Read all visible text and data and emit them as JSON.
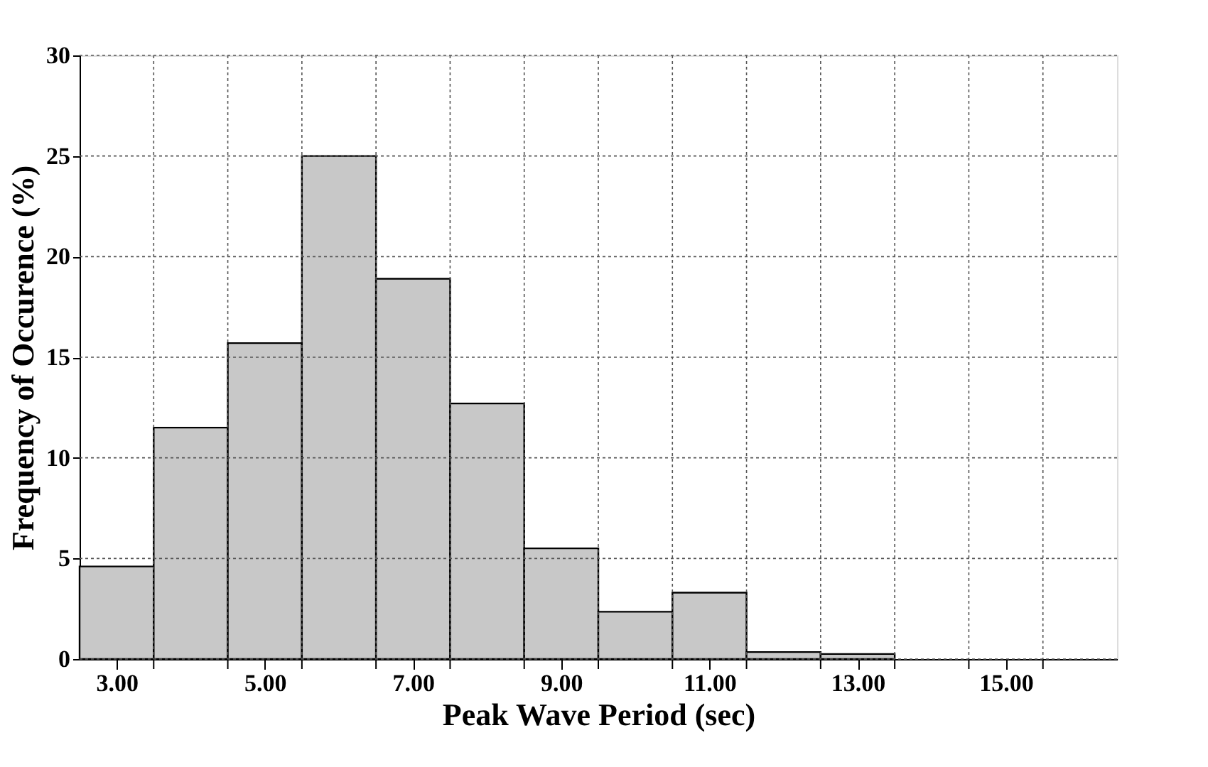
{
  "chart_data": {
    "type": "histogram",
    "xlabel": "Peak Wave Period (sec)",
    "ylabel": "Frequency of Occurence (%)",
    "bins": [
      2.5,
      3.5,
      4.5,
      5.5,
      6.5,
      7.5,
      8.5,
      9.5,
      10.5,
      11.5,
      12.5,
      13.5,
      14.5,
      15.5,
      16.5
    ],
    "values": [
      4.6,
      11.5,
      15.7,
      25.0,
      18.9,
      12.7,
      5.5,
      2.35,
      3.3,
      0.35,
      0.25,
      null,
      null,
      null
    ],
    "color": "#c8c8c8",
    "xlim": [
      2.5,
      16.5
    ],
    "xticks": [
      {
        "value": 3,
        "label": "3.00"
      },
      {
        "value": 5,
        "label": "5.00"
      },
      {
        "value": 7,
        "label": "7.00"
      },
      {
        "value": 9,
        "label": "9.00"
      },
      {
        "value": 11,
        "label": "11.00"
      },
      {
        "value": 13,
        "label": "13.00"
      },
      {
        "value": 15,
        "label": "15.00"
      }
    ],
    "ylim": [
      0,
      30
    ],
    "yticks": [
      0,
      5,
      10,
      15,
      20,
      25,
      30
    ],
    "grid": true
  }
}
